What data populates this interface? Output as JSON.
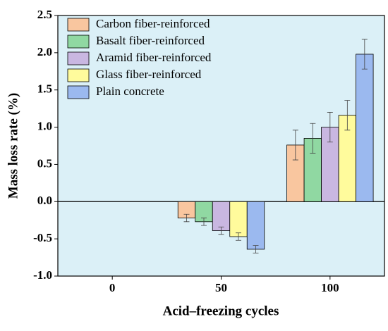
{
  "chart_data": {
    "type": "bar",
    "ylabel": "Mass loss rate (%)",
    "xlabel": "Acid–freezing cycles",
    "categories": [
      "0",
      "50",
      "100"
    ],
    "series": [
      {
        "name": "Carbon fiber-reinforced",
        "color": "#f9c69f",
        "values": [
          null,
          -0.22,
          0.76
        ],
        "errors": [
          null,
          0.05,
          0.2
        ]
      },
      {
        "name": "Basalt fiber-reinforced",
        "color": "#90d8a2",
        "values": [
          null,
          -0.27,
          0.85
        ],
        "errors": [
          null,
          0.05,
          0.2
        ]
      },
      {
        "name": "Aramid fiber-reinforced",
        "color": "#c9b7e1",
        "values": [
          null,
          -0.39,
          1.0
        ],
        "errors": [
          null,
          0.05,
          0.2
        ]
      },
      {
        "name": "Glass fiber-reinforced",
        "color": "#fffb9c",
        "values": [
          null,
          -0.47,
          1.16
        ],
        "errors": [
          null,
          0.05,
          0.2
        ]
      },
      {
        "name": "Plain concrete",
        "color": "#9bb9ef",
        "values": [
          null,
          -0.64,
          1.98
        ],
        "errors": [
          null,
          0.05,
          0.2
        ]
      }
    ],
    "ylim": [
      -1.0,
      2.5
    ],
    "yticks": [
      {
        "value": -1.0,
        "label": "-1.0"
      },
      -0.5,
      {
        "value": 0,
        "label": "0.0"
      },
      0.5,
      {
        "value": 1,
        "label": "1.0"
      },
      1.5,
      {
        "value": 2,
        "label": "2.0"
      },
      2.5
    ],
    "background": "#dbf0f7",
    "legend": "upper left"
  }
}
